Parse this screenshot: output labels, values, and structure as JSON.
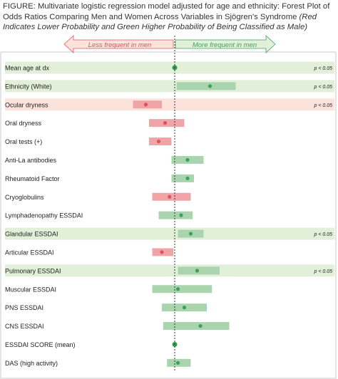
{
  "caption": {
    "lead": "FIGURE: Multivariate logistic regression model adjusted for age and ethnicity: Forest Plot of Odds Ratios Comparing Men and Women Across Variables in Sjögren's Syndrome ",
    "note": "(Red Indicates Lower Probability and Green Higher Probability of Being Classified as Male)"
  },
  "chart_data": {
    "type": "forest",
    "arrows": {
      "left": "Less frequent in men",
      "right": "More frequent in men"
    },
    "reference_value": 1,
    "x_range": [
      0,
      3.2
    ],
    "colors": {
      "lower": "#e0525b",
      "higher": "#3aa35a",
      "lower_ci": "#f0a4a8",
      "higher_ci": "#a9d4ae",
      "neutral_point": "#2e9e48",
      "row_green": "#e2f0d9",
      "row_red": "#fbe3dc"
    },
    "rows": [
      {
        "label": "Mean age at dx",
        "or": 1.0,
        "lo": 1.0,
        "hi": 1.0,
        "dir": "neutral",
        "band": "green",
        "pval": "p < 0.05"
      },
      {
        "label": "Ethnicity (White)",
        "or": 1.55,
        "lo": 1.03,
        "hi": 1.95,
        "dir": "higher",
        "band": "green",
        "pval": "p < 0.05"
      },
      {
        "label": "Ocular dryness",
        "or": 0.55,
        "lo": 0.35,
        "hi": 0.8,
        "dir": "lower",
        "band": "red",
        "pval": "p < 0.05"
      },
      {
        "label": "Oral dryness",
        "or": 0.85,
        "lo": 0.6,
        "hi": 1.15,
        "dir": "lower",
        "band": "",
        "pval": ""
      },
      {
        "label": "Oral tests (+)",
        "or": 0.75,
        "lo": 0.6,
        "hi": 0.95,
        "dir": "lower",
        "band": "",
        "pval": ""
      },
      {
        "label": "Anti-La antibodies",
        "or": 1.2,
        "lo": 0.95,
        "hi": 1.45,
        "dir": "higher",
        "band": "",
        "pval": ""
      },
      {
        "label": "Rheumatoid Factor",
        "or": 1.2,
        "lo": 0.95,
        "hi": 1.3,
        "dir": "higher",
        "band": "",
        "pval": ""
      },
      {
        "label": "Cryoglobulins",
        "or": 0.92,
        "lo": 0.65,
        "hi": 1.25,
        "dir": "lower",
        "band": "",
        "pval": ""
      },
      {
        "label": "Lymphadenopathy ESSDAI",
        "or": 1.1,
        "lo": 0.75,
        "hi": 1.28,
        "dir": "higher",
        "band": "",
        "pval": ""
      },
      {
        "label": "Glandular ESSDAI",
        "or": 1.25,
        "lo": 1.05,
        "hi": 1.45,
        "dir": "higher",
        "band": "green",
        "pval": "p < 0.05"
      },
      {
        "label": "Articular ESSDAI",
        "or": 0.8,
        "lo": 0.65,
        "hi": 0.98,
        "dir": "lower",
        "band": "",
        "pval": ""
      },
      {
        "label": "Pulmonary ESSDAI",
        "or": 1.35,
        "lo": 1.05,
        "hi": 1.7,
        "dir": "higher",
        "band": "green",
        "pval": "p < 0.05"
      },
      {
        "label": "Muscular ESSDAI",
        "or": 1.05,
        "lo": 0.65,
        "hi": 1.58,
        "dir": "higher",
        "band": "",
        "pval": ""
      },
      {
        "label": "PNS ESSDAI",
        "or": 1.15,
        "lo": 0.8,
        "hi": 1.5,
        "dir": "higher",
        "band": "",
        "pval": ""
      },
      {
        "label": "CNS ESSDAI",
        "or": 1.4,
        "lo": 0.82,
        "hi": 1.85,
        "dir": "higher",
        "band": "",
        "pval": ""
      },
      {
        "label": "ESSDAI SCORE (mean)",
        "or": 1.0,
        "lo": 1.0,
        "hi": 1.0,
        "dir": "neutral",
        "band": "",
        "pval": ""
      },
      {
        "label": "DAS (high activity)",
        "or": 1.05,
        "lo": 0.88,
        "hi": 1.25,
        "dir": "higher",
        "band": "",
        "pval": ""
      }
    ]
  }
}
